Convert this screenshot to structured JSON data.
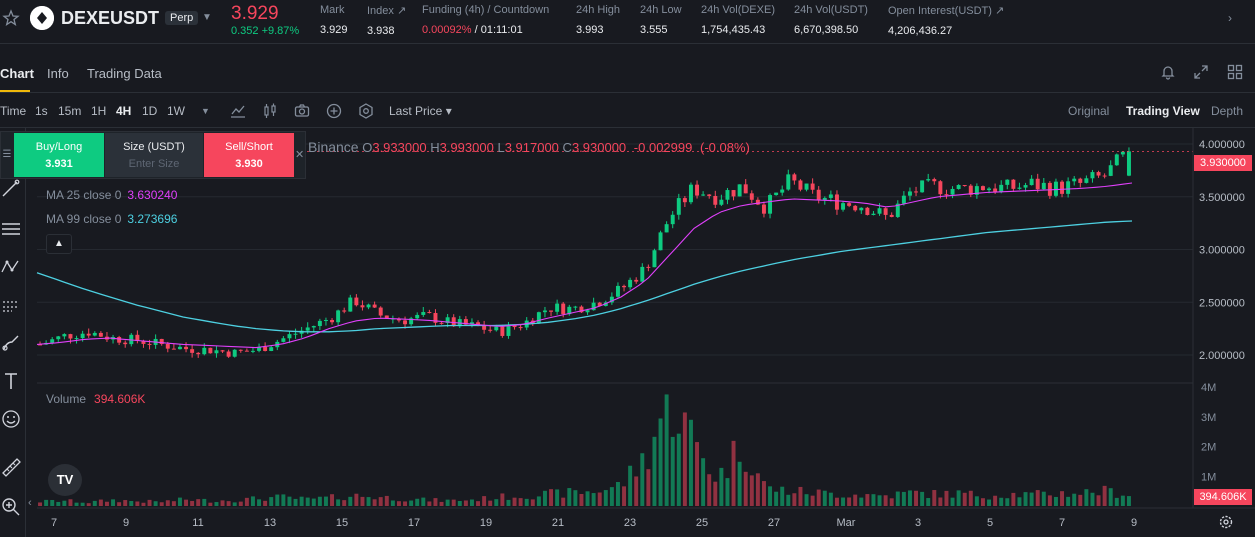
{
  "ticker": {
    "symbol": "DEXEUSDT",
    "contract_type": "Perp",
    "last_price": "3.929",
    "change": "0.352 +9.87%",
    "stats": [
      {
        "label": "Mark",
        "value": "3.929"
      },
      {
        "label": "Index ↗",
        "value": "3.938"
      },
      {
        "label": "Funding (4h) / Countdown",
        "value_red": "0.00092%",
        "value": " / 01:11:01"
      },
      {
        "label": "24h High",
        "value": "3.993"
      },
      {
        "label": "24h Low",
        "value": "3.555"
      },
      {
        "label": "24h Vol(DEXE)",
        "value": "1,754,435.43"
      },
      {
        "label": "24h Vol(USDT)",
        "value": "6,670,398.50"
      },
      {
        "label": "Open Interest(USDT) ↗",
        "value": "4,206,436.27"
      }
    ],
    "colors": {
      "up": "#0ecb81",
      "down": "#f6465d",
      "accent": "#f0b90b"
    }
  },
  "tabs": [
    {
      "label": "Chart",
      "active": true
    },
    {
      "label": "Info",
      "active": false
    },
    {
      "label": "Trading Data",
      "active": false
    }
  ],
  "toolbar": {
    "time_label": "Time",
    "intervals": [
      "1s",
      "15m",
      "1H",
      "4H",
      "1D",
      "1W"
    ],
    "active_interval": "4H",
    "price_type": "Last Price ▾",
    "views": [
      "Original",
      "Trading View",
      "Depth"
    ],
    "active_view": "Trading View"
  },
  "trade_widget": {
    "buy_label": "Buy/Long",
    "buy_price": "3.931",
    "size_label": "Size (USDT)",
    "size_placeholder": "Enter Size",
    "sell_label": "Sell/Short",
    "sell_price": "3.930"
  },
  "legend": {
    "source": "Binance",
    "open": "3.933000",
    "high": "3.993000",
    "low": "3.917000",
    "close": "3.930000",
    "change": "-0.002999",
    "change_pct": "(-0.08%)",
    "ma25_label": "MA 25 close 0",
    "ma25_value": "3.630240",
    "ma99_label": "MA 99 close 0",
    "ma99_value": "3.273696",
    "volume_label": "Volume",
    "volume_value": "394.606K"
  },
  "chart_data": {
    "type": "candlestick",
    "price_ticks": [
      "4.000000",
      "3.500000",
      "3.000000",
      "2.500000",
      "2.000000"
    ],
    "price_tick_values": [
      4.0,
      3.5,
      3.0,
      2.5,
      2.0
    ],
    "volume_ticks": [
      "4M",
      "3M",
      "2M",
      "1M"
    ],
    "volume_tick_values": [
      4000000,
      3000000,
      2000000,
      1000000
    ],
    "date_ticks": [
      "7",
      "9",
      "11",
      "13",
      "15",
      "17",
      "19",
      "21",
      "23",
      "25",
      "27",
      "Mar",
      "3",
      "5",
      "7",
      "9"
    ],
    "current_price_tag": "3.930000",
    "current_volume_tag": "394.606K",
    "price_points": [
      2.1,
      2.18,
      2.22,
      2.16,
      2.14,
      2.1,
      2.06,
      2.05,
      2.02,
      2.05,
      2.15,
      2.25,
      2.35,
      2.52,
      2.38,
      2.33,
      2.37,
      2.3,
      2.27,
      2.22,
      2.3,
      2.45,
      2.44,
      2.5,
      2.62,
      2.82,
      3.3,
      3.58,
      3.5,
      3.6,
      3.4,
      3.65,
      3.5,
      3.45,
      3.42,
      3.3,
      3.55,
      3.6,
      3.57,
      3.6,
      3.58,
      3.62,
      3.58,
      3.62,
      3.7,
      3.93
    ],
    "ma25": [
      2.1,
      2.12,
      2.15,
      2.16,
      2.14,
      2.12,
      2.1,
      2.09,
      2.08,
      2.07,
      2.1,
      2.16,
      2.25,
      2.32,
      2.35,
      2.34,
      2.33,
      2.31,
      2.29,
      2.27,
      2.29,
      2.35,
      2.4,
      2.45,
      2.55,
      2.7,
      2.95,
      3.2,
      3.35,
      3.42,
      3.45,
      3.48,
      3.47,
      3.46,
      3.44,
      3.4,
      3.45,
      3.5,
      3.52,
      3.54,
      3.55,
      3.56,
      3.57,
      3.58,
      3.6,
      3.63
    ],
    "ma99": [
      2.78,
      2.7,
      2.62,
      2.55,
      2.48,
      2.42,
      2.36,
      2.32,
      2.28,
      2.25,
      2.23,
      2.22,
      2.22,
      2.23,
      2.25,
      2.26,
      2.27,
      2.28,
      2.28,
      2.28,
      2.29,
      2.31,
      2.34,
      2.38,
      2.44,
      2.51,
      2.59,
      2.67,
      2.74,
      2.8,
      2.85,
      2.9,
      2.94,
      2.98,
      3.01,
      3.04,
      3.07,
      3.1,
      3.13,
      3.16,
      3.18,
      3.2,
      3.22,
      3.24,
      3.26,
      3.27
    ],
    "volume_points": [
      0.15,
      0.18,
      0.12,
      0.2,
      0.16,
      0.14,
      0.22,
      0.18,
      0.2,
      0.25,
      0.3,
      0.22,
      0.28,
      0.35,
      0.3,
      0.25,
      0.2,
      0.18,
      0.22,
      0.3,
      0.35,
      0.4,
      0.45,
      0.5,
      0.7,
      1.6,
      3.7,
      2.2,
      0.9,
      2.1,
      0.6,
      0.5,
      0.45,
      0.4,
      0.38,
      0.35,
      0.45,
      0.4,
      0.42,
      0.35,
      0.4,
      0.38,
      0.42,
      0.45,
      0.5,
      0.39
    ]
  }
}
